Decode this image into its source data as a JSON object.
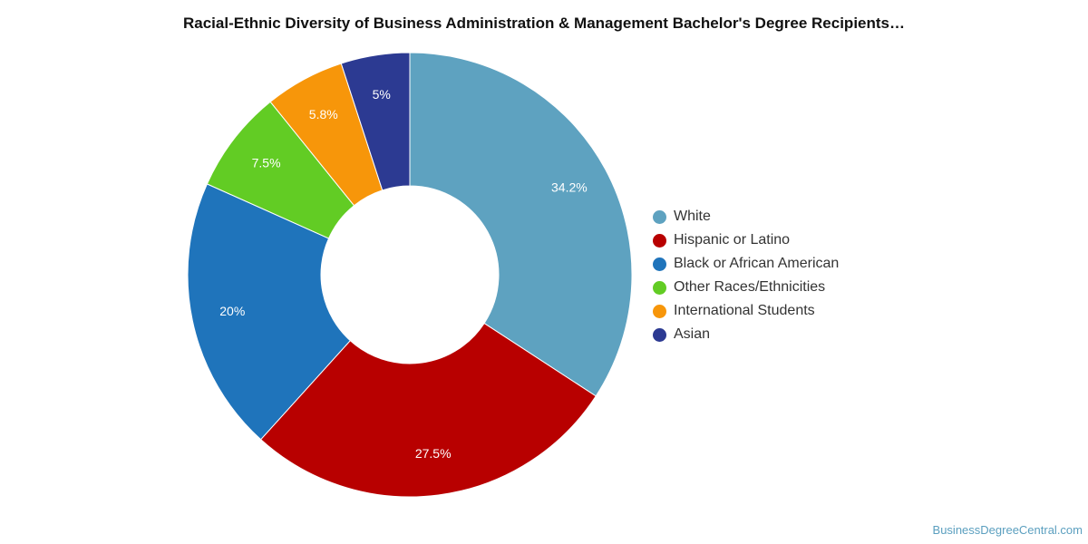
{
  "chart_data": {
    "type": "donut",
    "title": "Racial-Ethnic Diversity of Business Administration & Management Bachelor's Degree Recipients…",
    "slices": [
      {
        "name": "White",
        "value": 34.2,
        "label": "34.2%",
        "color": "#5ea2c0"
      },
      {
        "name": "Hispanic or Latino",
        "value": 27.5,
        "label": "27.5%",
        "color": "#b80000"
      },
      {
        "name": "Black or African American",
        "value": 20,
        "label": "20%",
        "color": "#1f74bb"
      },
      {
        "name": "Other Races/Ethnicities",
        "value": 7.5,
        "label": "7.5%",
        "color": "#62cc24"
      },
      {
        "name": "International Students",
        "value": 5.8,
        "label": "5.8%",
        "color": "#f7960a"
      },
      {
        "name": "Asian",
        "value": 5,
        "label": "5%",
        "color": "#2c3a92"
      }
    ],
    "legend_position": "right"
  },
  "credit": {
    "text": "BusinessDegreeCentral.com"
  }
}
